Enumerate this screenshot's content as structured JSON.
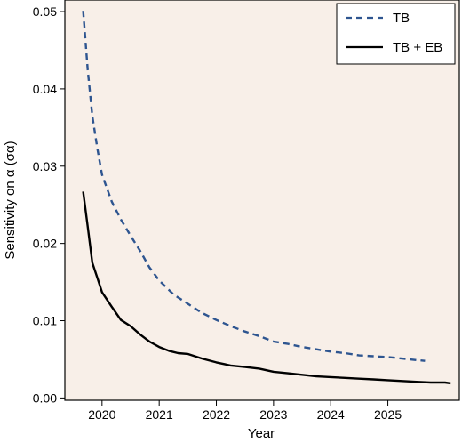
{
  "chart_data": {
    "type": "line",
    "title": "",
    "xlabel": "Year",
    "ylabel": "Sensitivity on α (σα)",
    "xlim": [
      2019.35,
      2026.25
    ],
    "ylim": [
      -0.0003,
      0.0515
    ],
    "x_ticks": [
      2020,
      2021,
      2022,
      2023,
      2024,
      2025
    ],
    "x_tick_labels": [
      "2020",
      "2021",
      "2022",
      "2023",
      "2024",
      "2025"
    ],
    "y_ticks": [
      0.0,
      0.01,
      0.02,
      0.03,
      0.04,
      0.05
    ],
    "y_tick_labels": [
      "0.00",
      "0.01",
      "0.02",
      "0.03",
      "0.04",
      "0.05"
    ],
    "grid": false,
    "legend_position": "top-right",
    "colors": {
      "background": "#f8efe8",
      "tb": "#2e5590",
      "tb_eb": "#000000"
    },
    "series": [
      {
        "name": "TB",
        "style": "dashed",
        "color": "#2e5590",
        "x": [
          2019.67,
          2019.75,
          2019.83,
          2019.92,
          2020.0,
          2020.17,
          2020.33,
          2020.5,
          2020.67,
          2020.83,
          2021.0,
          2021.25,
          2021.5,
          2021.75,
          2022.0,
          2022.25,
          2022.5,
          2022.75,
          2023.0,
          2023.25,
          2023.5,
          2023.75,
          2024.0,
          2024.25,
          2024.5,
          2024.75,
          2025.0,
          2025.25,
          2025.5,
          2025.65
        ],
        "y": [
          0.0501,
          0.0425,
          0.0365,
          0.0322,
          0.0289,
          0.0254,
          0.0231,
          0.021,
          0.019,
          0.0169,
          0.0152,
          0.0134,
          0.0122,
          0.011,
          0.0101,
          0.0093,
          0.0086,
          0.008,
          0.0073,
          0.007,
          0.0066,
          0.0063,
          0.006,
          0.0058,
          0.0055,
          0.0054,
          0.0053,
          0.0051,
          0.0049,
          0.0048
        ]
      },
      {
        "name": "TB + EB",
        "style": "solid",
        "color": "#000000",
        "x": [
          2019.67,
          2019.75,
          2019.83,
          2019.92,
          2020.0,
          2020.17,
          2020.33,
          2020.5,
          2020.67,
          2020.83,
          2021.0,
          2021.17,
          2021.33,
          2021.5,
          2021.75,
          2022.0,
          2022.25,
          2022.5,
          2022.75,
          2023.0,
          2023.25,
          2023.5,
          2023.75,
          2024.0,
          2024.25,
          2024.5,
          2024.75,
          2025.0,
          2025.25,
          2025.5,
          2025.75,
          2026.0,
          2026.1
        ],
        "y": [
          0.0267,
          0.0222,
          0.0175,
          0.0155,
          0.0137,
          0.0118,
          0.0101,
          0.0093,
          0.0082,
          0.0073,
          0.0066,
          0.0061,
          0.0058,
          0.0057,
          0.0051,
          0.0046,
          0.0042,
          0.004,
          0.0038,
          0.0034,
          0.0032,
          0.003,
          0.0028,
          0.0027,
          0.0026,
          0.0025,
          0.0024,
          0.0023,
          0.0022,
          0.0021,
          0.002,
          0.002,
          0.0019
        ]
      }
    ]
  }
}
